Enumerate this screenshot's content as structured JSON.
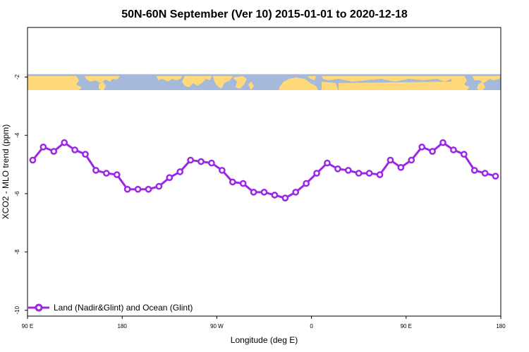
{
  "chart_data": {
    "type": "line",
    "title": "50N-60N September (Ver 10)   2015-01-01 to 2020-12-18",
    "xlabel": "Longitude (deg E)",
    "ylabel": "XCO2 - MLO trend (ppm)",
    "xlim": [
      90,
      540
    ],
    "ylim": [
      -10.2,
      -0.3
    ],
    "x_ticks": [
      {
        "value": 90,
        "label": "90 E"
      },
      {
        "value": 180,
        "label": "180"
      },
      {
        "value": 270,
        "label": "90 W"
      },
      {
        "value": 360,
        "label": "0"
      },
      {
        "value": 450,
        "label": "90 E"
      },
      {
        "value": 540,
        "label": "180"
      }
    ],
    "y_ticks": [
      {
        "value": -2,
        "label": "-2"
      },
      {
        "value": -4,
        "label": "-4"
      },
      {
        "value": -6,
        "label": "-6"
      },
      {
        "value": -8,
        "label": "-8"
      },
      {
        "value": -10,
        "label": "-10"
      }
    ],
    "map_band": {
      "y_top": -1.9,
      "y_bottom": -2.45,
      "ocean_color": "#A5B9DA",
      "land_color": "#FFD97A"
    },
    "series": [
      {
        "name": "Land (Nadir&Glint) and Ocean (Glint)",
        "color": "#9B26E6",
        "x": [
          95,
          105,
          115,
          125,
          135,
          145,
          155,
          165,
          175,
          185,
          195,
          205,
          215,
          225,
          235,
          245,
          255,
          265,
          275,
          285,
          295,
          305,
          315,
          325,
          335,
          345,
          355,
          365,
          375,
          385,
          395,
          405,
          415,
          425,
          435,
          445,
          455,
          465,
          475,
          485,
          495,
          505,
          515,
          525,
          535
        ],
        "values": [
          -4.85,
          -4.4,
          -4.55,
          -4.25,
          -4.5,
          -4.65,
          -5.2,
          -5.3,
          -5.35,
          -5.85,
          -5.85,
          -5.85,
          -5.75,
          -5.45,
          -5.25,
          -4.85,
          -4.9,
          -4.95,
          -5.2,
          -5.6,
          -5.65,
          -5.95,
          -5.95,
          -6.05,
          -6.15,
          -5.95,
          -5.65,
          -5.3,
          -4.95,
          -5.15,
          -5.2,
          -5.3,
          -5.3,
          -5.35,
          -4.85,
          -5.1,
          -4.85,
          -4.4,
          -4.55,
          -4.25,
          -4.5,
          -4.65,
          -5.2,
          -5.3,
          -5.4
        ]
      }
    ],
    "legend": {
      "position": "bottom-left"
    }
  }
}
